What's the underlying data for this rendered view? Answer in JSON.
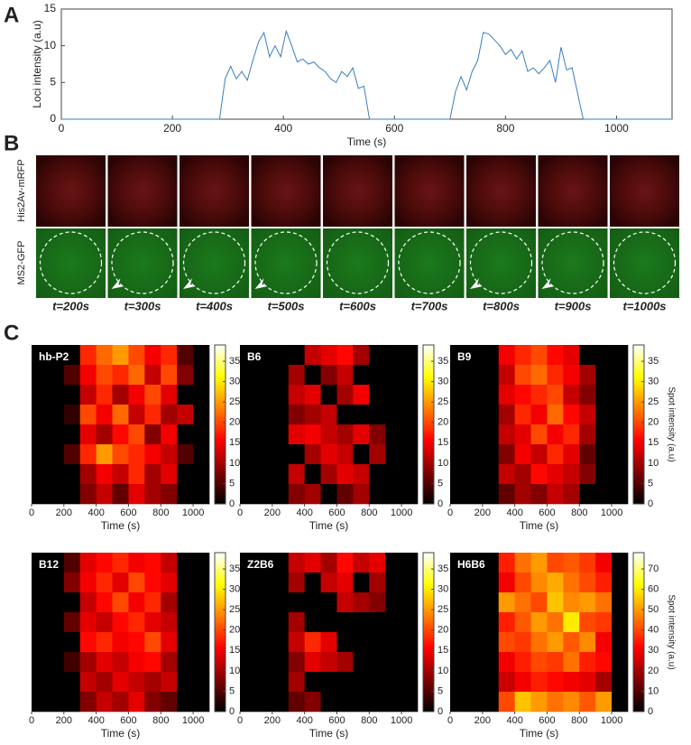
{
  "panel_labels": [
    "A",
    "B",
    "C"
  ],
  "panel_b": {
    "channels": [
      "His2Av-mRFP",
      "MS2-GFP"
    ],
    "times": [
      "t=200s",
      "t=300s",
      "t=400s",
      "t=500s",
      "t=600s",
      "t=700s",
      "t=800s",
      "t=900s",
      "t=1000s"
    ]
  },
  "chart_data": [
    {
      "type": "line",
      "x_label": "Time (s)",
      "y_label": "Loci intensity (a.u)",
      "color": "#3a7ebf",
      "xlim": [
        0,
        1100
      ],
      "ylim": [
        0,
        15
      ],
      "xticks": [
        0,
        200,
        400,
        600,
        800,
        1000
      ],
      "yticks": [
        0,
        5,
        10,
        15
      ],
      "x": [
        0,
        285,
        295,
        305,
        315,
        325,
        335,
        345,
        355,
        365,
        375,
        385,
        395,
        405,
        415,
        425,
        435,
        445,
        455,
        465,
        475,
        485,
        495,
        505,
        515,
        525,
        535,
        545,
        555,
        700,
        710,
        720,
        730,
        740,
        750,
        760,
        770,
        780,
        790,
        800,
        810,
        820,
        830,
        840,
        850,
        860,
        870,
        880,
        890,
        900,
        910,
        920,
        940,
        1100
      ],
      "y": [
        0,
        0,
        5.5,
        7.2,
        5.5,
        6.5,
        5.3,
        8,
        10.5,
        11.8,
        8.5,
        10,
        8.5,
        12,
        10,
        7.8,
        8.2,
        7.5,
        7.8,
        7,
        6.5,
        5.5,
        5,
        6.5,
        5.8,
        7,
        4.2,
        4.5,
        0,
        0,
        3.8,
        5.8,
        4,
        6.5,
        8,
        11.8,
        11.6,
        10.8,
        10,
        8.8,
        9.5,
        8.2,
        9.3,
        6.5,
        7,
        6.2,
        7,
        8,
        5,
        9.8,
        6.7,
        7,
        0,
        0
      ]
    },
    {
      "type": "heatmap",
      "label": "hb-P2",
      "x_label": "Time (s)",
      "xlim": [
        0,
        1100
      ],
      "xticks": [
        0,
        200,
        400,
        600,
        800,
        1000
      ],
      "xbins": [
        0,
        100,
        200,
        300,
        400,
        500,
        600,
        700,
        800,
        900,
        1000,
        1100
      ],
      "clim": [
        0,
        39
      ],
      "cticks": [
        0,
        5,
        10,
        15,
        20,
        25,
        30,
        35
      ],
      "z": [
        [
          0,
          0,
          0,
          18,
          22,
          25,
          20,
          15,
          18,
          5,
          0
        ],
        [
          0,
          0,
          5,
          15,
          20,
          18,
          22,
          12,
          20,
          8,
          0
        ],
        [
          0,
          0,
          0,
          12,
          18,
          10,
          15,
          20,
          14,
          0,
          0
        ],
        [
          0,
          0,
          3,
          20,
          15,
          22,
          12,
          18,
          10,
          12,
          0
        ],
        [
          0,
          0,
          0,
          14,
          10,
          16,
          20,
          8,
          15,
          0,
          0
        ],
        [
          0,
          0,
          5,
          18,
          25,
          20,
          18,
          15,
          12,
          5,
          0
        ],
        [
          0,
          0,
          0,
          10,
          15,
          12,
          18,
          10,
          14,
          0,
          0
        ],
        [
          0,
          0,
          0,
          8,
          12,
          6,
          14,
          10,
          8,
          0,
          0
        ]
      ]
    },
    {
      "type": "heatmap",
      "label": "B6",
      "x_label": "Time (s)",
      "xlim": [
        0,
        1100
      ],
      "xticks": [
        0,
        200,
        400,
        600,
        800,
        1000
      ],
      "xbins": [
        0,
        100,
        200,
        300,
        400,
        500,
        600,
        700,
        800,
        900,
        1000,
        1100
      ],
      "clim": [
        0,
        39
      ],
      "cticks": [
        0,
        5,
        10,
        15,
        20,
        25,
        30,
        35
      ],
      "z": [
        [
          0,
          0,
          0,
          0,
          12,
          14,
          16,
          10,
          0,
          0,
          0
        ],
        [
          0,
          0,
          0,
          10,
          0,
          8,
          12,
          0,
          0,
          0,
          0
        ],
        [
          0,
          0,
          0,
          12,
          14,
          0,
          10,
          15,
          0,
          0,
          0
        ],
        [
          0,
          0,
          0,
          8,
          10,
          12,
          0,
          0,
          0,
          0,
          0
        ],
        [
          0,
          0,
          0,
          14,
          15,
          12,
          10,
          14,
          8,
          0,
          0
        ],
        [
          0,
          0,
          0,
          0,
          10,
          14,
          12,
          0,
          10,
          0,
          0
        ],
        [
          0,
          0,
          0,
          12,
          0,
          10,
          14,
          12,
          0,
          0,
          0
        ],
        [
          0,
          0,
          0,
          8,
          10,
          0,
          6,
          10,
          0,
          0,
          0
        ]
      ]
    },
    {
      "type": "heatmap",
      "label": "B9",
      "x_label": "Time (s)",
      "colorbar_label": "Spot intensity (a.u)",
      "xlim": [
        0,
        1100
      ],
      "xticks": [
        0,
        200,
        400,
        600,
        800,
        1000
      ],
      "xbins": [
        0,
        100,
        200,
        300,
        400,
        500,
        600,
        700,
        800,
        900,
        1000,
        1100
      ],
      "clim": [
        0,
        39
      ],
      "cticks": [
        0,
        5,
        10,
        15,
        20,
        25,
        30,
        35
      ],
      "z": [
        [
          0,
          0,
          0,
          15,
          18,
          20,
          16,
          14,
          0,
          0,
          0
        ],
        [
          0,
          0,
          0,
          12,
          20,
          22,
          18,
          15,
          10,
          0,
          0
        ],
        [
          0,
          0,
          0,
          14,
          16,
          18,
          20,
          12,
          8,
          0,
          0
        ],
        [
          0,
          0,
          0,
          10,
          18,
          15,
          22,
          16,
          12,
          0,
          0
        ],
        [
          0,
          0,
          0,
          12,
          14,
          20,
          15,
          18,
          10,
          0,
          0
        ],
        [
          0,
          0,
          0,
          8,
          15,
          12,
          18,
          14,
          6,
          0,
          0
        ],
        [
          0,
          0,
          0,
          12,
          10,
          16,
          14,
          12,
          8,
          0,
          0
        ],
        [
          0,
          0,
          0,
          6,
          10,
          8,
          12,
          10,
          0,
          0,
          0
        ]
      ]
    },
    {
      "type": "heatmap",
      "label": "B12",
      "x_label": "Time (s)",
      "xlim": [
        0,
        1100
      ],
      "xticks": [
        0,
        200,
        400,
        600,
        800,
        1000
      ],
      "xbins": [
        0,
        100,
        200,
        300,
        400,
        500,
        600,
        700,
        800,
        900,
        1000,
        1100
      ],
      "clim": [
        0,
        39
      ],
      "cticks": [
        0,
        5,
        10,
        15,
        20,
        25,
        30,
        35
      ],
      "z": [
        [
          0,
          0,
          5,
          14,
          16,
          18,
          15,
          16,
          12,
          0,
          0
        ],
        [
          0,
          0,
          8,
          15,
          18,
          14,
          20,
          16,
          14,
          0,
          0
        ],
        [
          0,
          0,
          0,
          12,
          16,
          20,
          15,
          18,
          10,
          0,
          0
        ],
        [
          0,
          0,
          6,
          14,
          12,
          16,
          18,
          14,
          12,
          0,
          0
        ],
        [
          0,
          0,
          0,
          16,
          18,
          15,
          16,
          20,
          14,
          0,
          0
        ],
        [
          0,
          0,
          4,
          10,
          14,
          12,
          15,
          16,
          10,
          0,
          0
        ],
        [
          0,
          0,
          0,
          12,
          10,
          14,
          12,
          10,
          12,
          0,
          0
        ],
        [
          0,
          0,
          0,
          8,
          12,
          10,
          14,
          8,
          6,
          0,
          0
        ]
      ]
    },
    {
      "type": "heatmap",
      "label": "Z2B6",
      "x_label": "Time (s)",
      "xlim": [
        0,
        1100
      ],
      "xticks": [
        0,
        200,
        400,
        600,
        800,
        1000
      ],
      "xbins": [
        0,
        100,
        200,
        300,
        400,
        500,
        600,
        700,
        800,
        900,
        1000,
        1100
      ],
      "clim": [
        0,
        39
      ],
      "cticks": [
        0,
        5,
        10,
        15,
        20,
        25,
        30,
        35
      ],
      "z": [
        [
          0,
          0,
          0,
          12,
          14,
          10,
          16,
          12,
          14,
          0,
          0
        ],
        [
          0,
          0,
          0,
          10,
          0,
          12,
          14,
          0,
          10,
          0,
          0
        ],
        [
          0,
          0,
          0,
          0,
          0,
          0,
          12,
          10,
          8,
          0,
          0
        ],
        [
          0,
          0,
          0,
          10,
          0,
          0,
          0,
          0,
          0,
          0,
          0
        ],
        [
          0,
          0,
          0,
          12,
          18,
          14,
          0,
          0,
          0,
          0,
          0
        ],
        [
          0,
          0,
          0,
          8,
          14,
          12,
          10,
          0,
          0,
          0,
          0
        ],
        [
          0,
          0,
          0,
          10,
          0,
          0,
          0,
          0,
          0,
          0,
          0
        ],
        [
          0,
          0,
          0,
          6,
          8,
          0,
          0,
          0,
          0,
          0,
          0
        ]
      ]
    },
    {
      "type": "heatmap",
      "label": "H6B6",
      "x_label": "Time (s)",
      "colorbar_label": "Spot intensity (a.u)",
      "xlim": [
        0,
        1100
      ],
      "xticks": [
        0,
        200,
        400,
        600,
        800,
        1000
      ],
      "xbins": [
        0,
        100,
        200,
        300,
        400,
        500,
        600,
        700,
        800,
        900,
        1000,
        1100
      ],
      "clim": [
        0,
        78
      ],
      "cticks": [
        0,
        10,
        20,
        30,
        40,
        50,
        60,
        70
      ],
      "z": [
        [
          0,
          0,
          0,
          35,
          45,
          50,
          40,
          42,
          38,
          30,
          0
        ],
        [
          0,
          0,
          0,
          30,
          40,
          48,
          52,
          45,
          40,
          35,
          0
        ],
        [
          0,
          0,
          0,
          50,
          45,
          40,
          55,
          48,
          50,
          45,
          0
        ],
        [
          0,
          0,
          0,
          35,
          42,
          50,
          45,
          60,
          40,
          38,
          0
        ],
        [
          0,
          0,
          0,
          40,
          38,
          45,
          50,
          42,
          48,
          30,
          0
        ],
        [
          0,
          0,
          0,
          30,
          35,
          40,
          38,
          45,
          35,
          32,
          0
        ],
        [
          0,
          0,
          0,
          25,
          30,
          35,
          32,
          30,
          28,
          20,
          0
        ],
        [
          0,
          0,
          0,
          40,
          55,
          50,
          45,
          48,
          42,
          50,
          0
        ]
      ]
    }
  ]
}
